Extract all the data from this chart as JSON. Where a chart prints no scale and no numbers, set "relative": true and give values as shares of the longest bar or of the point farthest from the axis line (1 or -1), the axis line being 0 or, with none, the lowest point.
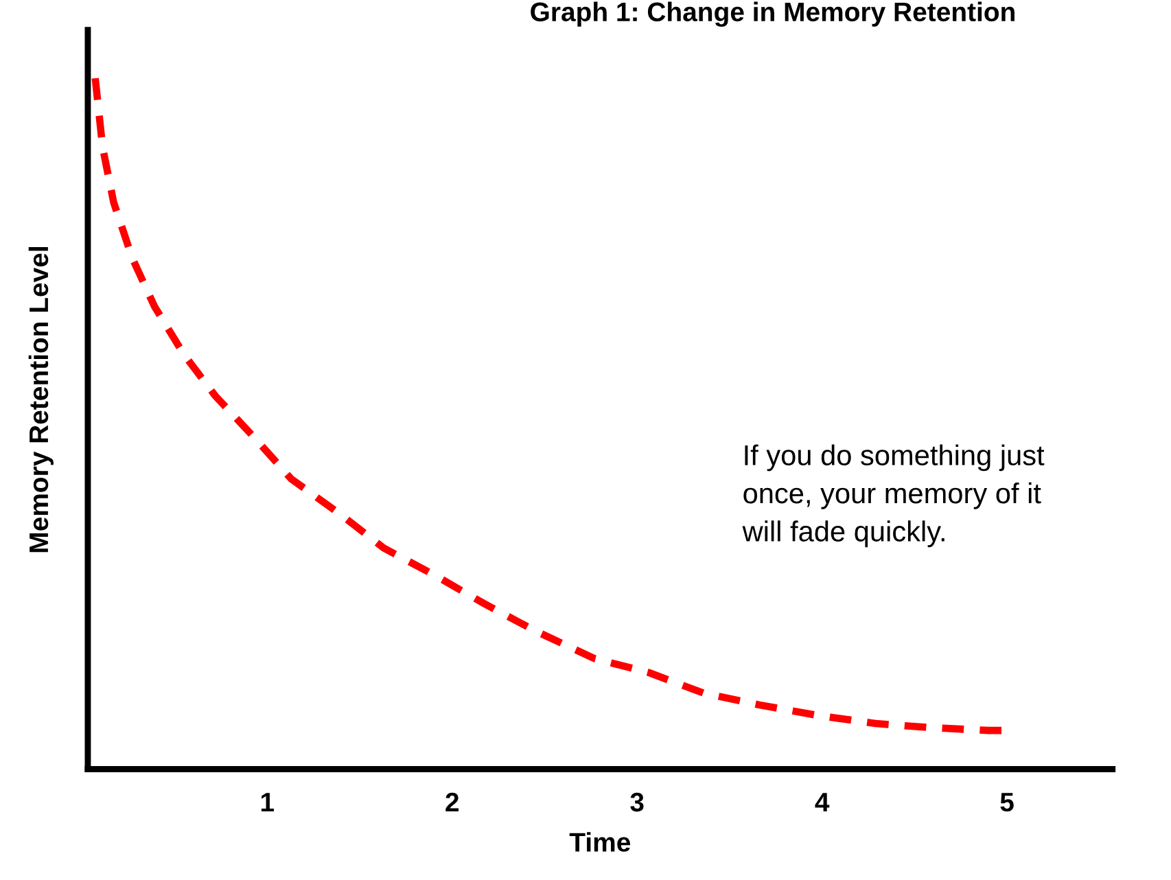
{
  "chart_data": {
    "type": "line",
    "title": "Graph 1: Change in Memory Retention",
    "xlabel": "Time",
    "ylabel": "Memory Retention Level",
    "annotations": [
      "If you do something just\nonce, your memory of it\nwill fade quickly."
    ],
    "relative": true,
    "xlim": [
      0.03,
      5.57
    ],
    "xticks": [
      1,
      2,
      3,
      4,
      5
    ],
    "tick_labels": "x",
    "grid": false,
    "legend": false,
    "marker": "none",
    "line_style": "dashed",
    "series": [
      {
        "color": "#ff0000",
        "x": [
          0.07,
          0.11,
          0.17,
          0.27,
          0.39,
          0.55,
          0.72,
          0.93,
          1.13,
          1.39,
          1.63,
          1.91,
          2.17,
          2.45,
          2.77,
          3.06,
          3.36,
          3.66,
          3.97,
          4.29,
          4.59,
          4.9,
          5.0
        ],
        "values": [
          1.0,
          0.9,
          0.82,
          0.74,
          0.67,
          0.6,
          0.54,
          0.48,
          0.42,
          0.37,
          0.32,
          0.28,
          0.24,
          0.2,
          0.16,
          0.14,
          0.11,
          0.093,
          0.078,
          0.066,
          0.06,
          0.056,
          0.056
        ]
      }
    ]
  }
}
